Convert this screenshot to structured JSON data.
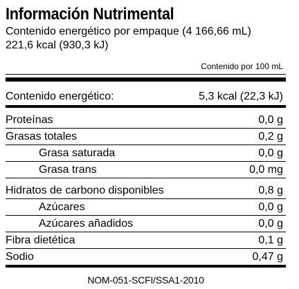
{
  "label": {
    "title": "Información Nutrimental",
    "energy_package_line": "Contenido energético por empaque (4 166,66 mL)",
    "energy_package_value": "221,6 kcal (930,3 kJ)",
    "per_100_header": "Contenido por 100 mL",
    "energy": {
      "name": "Contenido energético:",
      "value": "5,3 kcal (22,3 kJ)"
    },
    "rows": [
      {
        "name": "Proteínas",
        "value": "0,0 g"
      },
      {
        "name": "Grasas totales",
        "value": "0,2 g"
      },
      {
        "name": "Grasa saturada",
        "value": "0,0 g"
      },
      {
        "name": "Grasa trans",
        "value": "0,0 mg"
      },
      {
        "name": "Hidratos de carbono disponibles",
        "value": "0,8 g"
      },
      {
        "name": "Azúcares",
        "value": "0,0 g"
      },
      {
        "name": "Azúcares añadidos",
        "value": "0,0 g"
      },
      {
        "name": "Fibra dietética",
        "value": "0,1 g"
      },
      {
        "name": "Sodio",
        "value": "0,47 g"
      }
    ],
    "footer": "NOM-051-SCFI/SSA1-2010"
  }
}
